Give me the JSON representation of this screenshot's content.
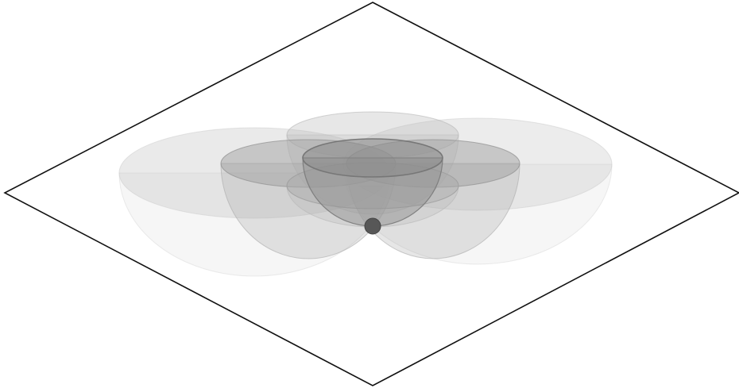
{
  "diagram": {
    "plane": {
      "stroke_color": "#000000",
      "fill_color": "#ffffff"
    },
    "bowls": [
      {
        "name": "far-left-bowl",
        "opacity_level": "lightest"
      },
      {
        "name": "far-right-bowl",
        "opacity_level": "lightest"
      },
      {
        "name": "back-bowl",
        "opacity_level": "light"
      },
      {
        "name": "front-bowl",
        "opacity_level": "light"
      },
      {
        "name": "left-bowl",
        "opacity_level": "medium"
      },
      {
        "name": "right-bowl",
        "opacity_level": "medium"
      },
      {
        "name": "center-bowl",
        "opacity_level": "darkest"
      }
    ],
    "contact_point": {
      "color": "#555555"
    },
    "colors": {
      "bowl_shade": "#8a8a8a",
      "rim_stroke": "#7a7a7a"
    }
  }
}
